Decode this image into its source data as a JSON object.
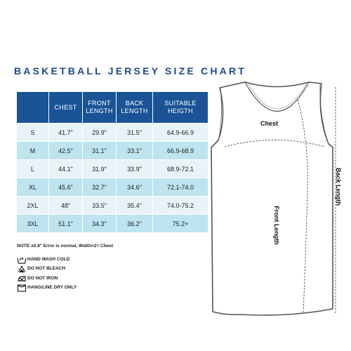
{
  "title": "BASKETBALL JERSEY SIZE CHART",
  "table": {
    "headers": [
      [
        "CHEST"
      ],
      [
        "FRONT",
        "LENGTH"
      ],
      [
        "BACK",
        "LENGTH"
      ],
      [
        "SUITABLE",
        "HEIGTH"
      ]
    ],
    "rows": [
      {
        "size": "S",
        "chest": "41.7\"",
        "front": "29.9\"",
        "back": "31.5\"",
        "height": "64.9-66.9"
      },
      {
        "size": "M",
        "chest": "42.5\"",
        "front": "31.1\"",
        "back": "33.1\"",
        "height": "66.9-68.9"
      },
      {
        "size": "L",
        "chest": "44.1\"",
        "front": "31.9\"",
        "back": "33.9\"",
        "height": "68.9-72.1"
      },
      {
        "size": "XL",
        "chest": "45.6\"",
        "front": "32.7\"",
        "back": "34.6\"",
        "height": "72.1-74.0"
      },
      {
        "size": "2XL",
        "chest": "48\"",
        "front": "33.5\"",
        "back": "35.4\"",
        "height": "74.0-75.2"
      },
      {
        "size": "3XL",
        "chest": "51.1\"",
        "front": "34.3\"",
        "back": "36.2\"",
        "height": "75.2+"
      }
    ]
  },
  "note": "NOTE:±0.8\" Error is normal, Width×2= Chest",
  "care": [
    {
      "icon": "hand-wash-icon",
      "label": "HAND WASH COLD"
    },
    {
      "icon": "no-bleach-icon",
      "label": "DO NOT BLEACH"
    },
    {
      "icon": "no-iron-icon",
      "label": "DO NOT IRON"
    },
    {
      "icon": "hang-dry-icon",
      "label": "HANG/LINE DRY ONLY"
    }
  ],
  "diagram": {
    "chest_label": "Chest",
    "front_length_label": "Front Length",
    "back_length_label": "Back Length"
  },
  "colors": {
    "header_bg": "#1a5497",
    "row_light": "#e8f3f8",
    "row_dark": "#bde4ef",
    "title": "#1a4a8a"
  }
}
